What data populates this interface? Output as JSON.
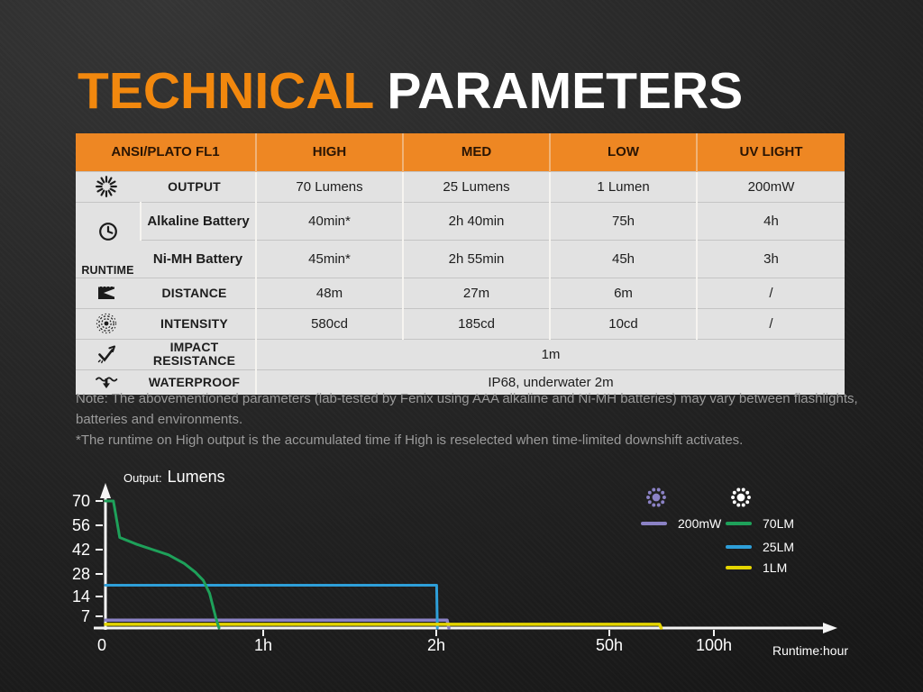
{
  "title": {
    "part1": "TECHNICAL",
    "part2": "PARAMETERS"
  },
  "colors": {
    "accent_orange": "#F2880E",
    "header_orange": "#EE8723",
    "table_row_bg": "#E2E2E2",
    "note_gray": "#9B9B9B",
    "axis_white": "#F5F5F5"
  },
  "table": {
    "header": [
      "ANSI/PLATO FL1",
      "HIGH",
      "MED",
      "LOW",
      "UV LIGHT"
    ],
    "rows": {
      "output": {
        "icon": "sun-burst-icon",
        "label": "OUTPUT",
        "values": [
          "70 Lumens",
          "25 Lumens",
          "1 Lumen",
          "200mW"
        ]
      },
      "runtime": {
        "icon": "clock-icon",
        "label": "RUNTIME",
        "sub": [
          {
            "label": "Alkaline Battery",
            "values": [
              "40min*",
              "2h 40min",
              "75h",
              "4h"
            ]
          },
          {
            "label": "Ni-MH Battery",
            "values": [
              "45min*",
              "2h 55min",
              "45h",
              "3h"
            ]
          }
        ]
      },
      "distance": {
        "icon": "beam-flag-icon",
        "label": "DISTANCE",
        "values": [
          "48m",
          "27m",
          "6m",
          "/"
        ]
      },
      "intensity": {
        "icon": "target-icon",
        "label": "INTENSITY",
        "values": [
          "580cd",
          "185cd",
          "10cd",
          "/"
        ]
      },
      "impact": {
        "icon": "impact-arrow-icon",
        "label": "IMPACT RESISTANCE",
        "value": "1m"
      },
      "waterproof": {
        "icon": "water-arrow-icon",
        "label": "WATERPROOF",
        "value": "IP68, underwater 2m"
      }
    }
  },
  "notes": [
    "Note: The abovementioned parameters (lab-tested by Fenix using AAA alkaline and Ni-MH batteries) may vary between flashlights, batteries and environments.",
    "*The runtime on High output is the accumulated time if High is reselected when time-limited downshift activates."
  ],
  "chart_data": {
    "type": "line",
    "title": "Output: Lumens",
    "ylabel_prefix": "Output:",
    "ylabel": "Lumens",
    "xlabel": "Runtime:hour",
    "x_axis_unit": "hours",
    "x_ticks": [
      {
        "value": 0,
        "label": "0"
      },
      {
        "value": 1,
        "label": "1h"
      },
      {
        "value": 2,
        "label": "2h"
      },
      {
        "value": 50,
        "label": "50h"
      },
      {
        "value": 100,
        "label": "100h"
      }
    ],
    "y_ticks": [
      70,
      56,
      42,
      28,
      14,
      7
    ],
    "ylim": [
      0,
      78
    ],
    "grid": false,
    "legend_position": "top-right",
    "series": [
      {
        "name": "200mW",
        "color": "#8B82C5",
        "width": 3.5,
        "points": [
          [
            0,
            4.7
          ],
          [
            5.0,
            4.7
          ],
          [
            5.5,
            0
          ]
        ]
      },
      {
        "name": "25LM",
        "color": "#2E9FD9",
        "width": 3,
        "points": [
          [
            0,
            21
          ],
          [
            2.1,
            21
          ],
          [
            2.3,
            0
          ]
        ]
      },
      {
        "name": "1LM",
        "color": "#E5D500",
        "width": 3.5,
        "points": [
          [
            0,
            2.2
          ],
          [
            74,
            2.2
          ],
          [
            74.8,
            0
          ]
        ]
      },
      {
        "name": "70LM",
        "color": "#1EA15A",
        "width": 3,
        "points": [
          [
            0,
            70
          ],
          [
            0.05,
            70
          ],
          [
            0.09,
            49
          ],
          [
            0.2,
            45
          ],
          [
            0.3,
            42
          ],
          [
            0.4,
            39
          ],
          [
            0.5,
            34
          ],
          [
            0.57,
            29
          ],
          [
            0.62,
            24
          ],
          [
            0.66,
            16
          ],
          [
            0.7,
            6
          ],
          [
            0.72,
            0
          ]
        ]
      }
    ],
    "legend": [
      {
        "group": "uv-light",
        "icon": "uv-sun-icon",
        "entries": [
          {
            "label": "200mW",
            "color": "#8B82C5"
          }
        ]
      },
      {
        "group": "white-light",
        "icon": "white-sun-icon",
        "entries": [
          {
            "label": "70LM",
            "color": "#1EA15A"
          },
          {
            "label": "25LM",
            "color": "#2E9FD9"
          },
          {
            "label": "1LM",
            "color": "#E5D500"
          }
        ]
      }
    ]
  }
}
